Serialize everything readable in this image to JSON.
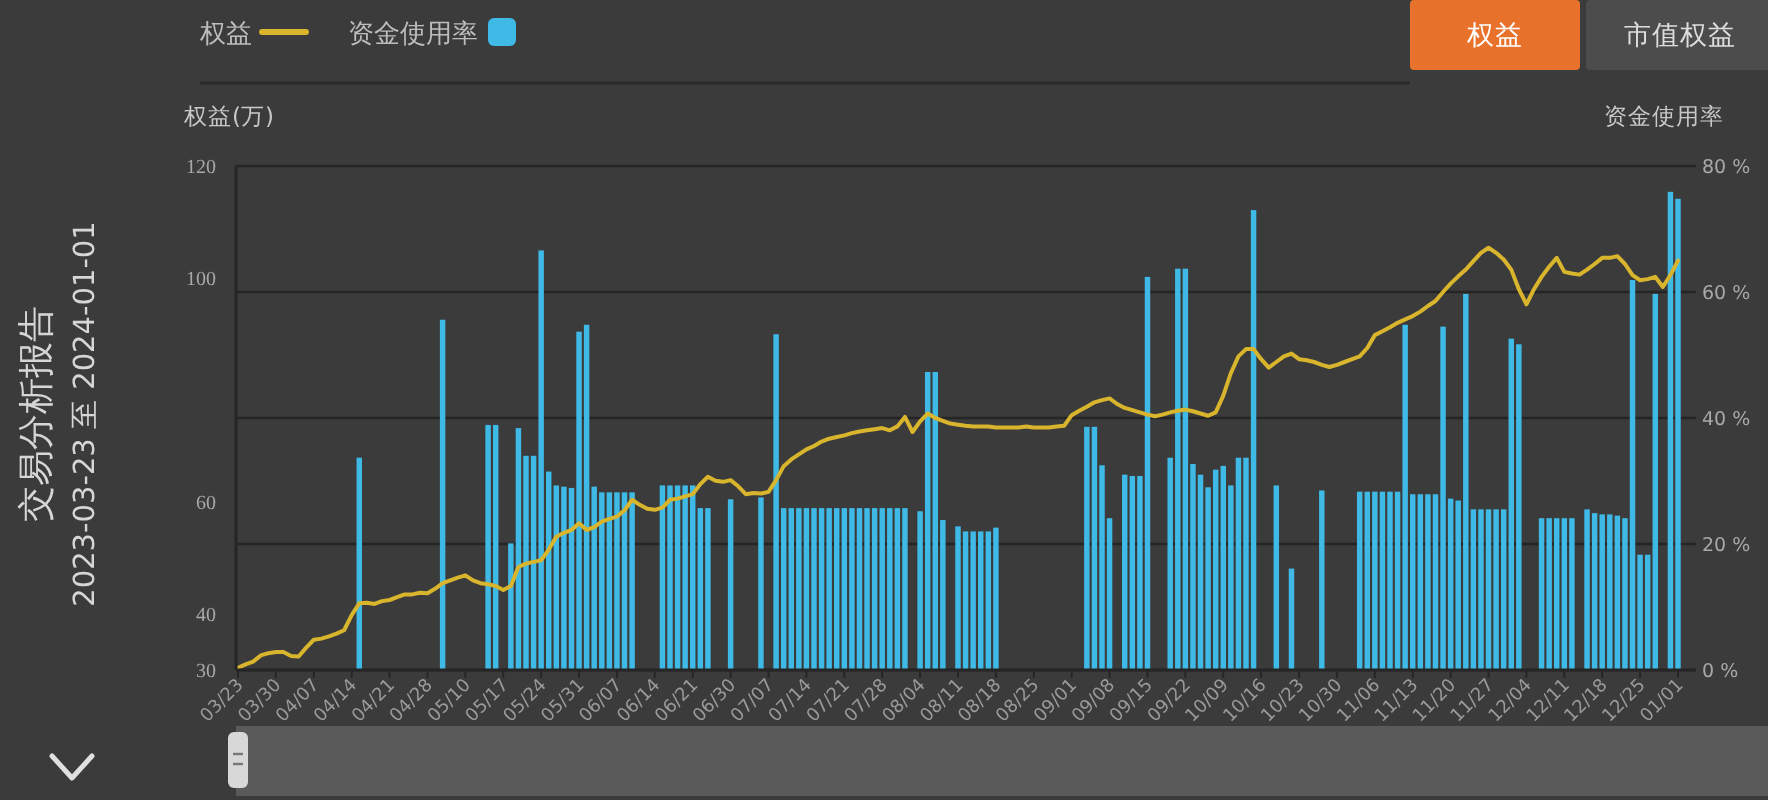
{
  "chart_data": {
    "type": "bar",
    "title": "交易分析报告",
    "subtitle": "2023-03-23 至 2024-01-01",
    "ylabel": "权益(万)",
    "y2label": "资金使用率",
    "categories": [
      "03/23",
      null,
      null,
      null,
      null,
      "03/30",
      null,
      null,
      null,
      null,
      "04/07",
      null,
      null,
      null,
      null,
      "04/14",
      null,
      null,
      null,
      null,
      "04/21",
      null,
      null,
      null,
      null,
      "04/28",
      null,
      null,
      null,
      null,
      "05/10",
      null,
      null,
      null,
      null,
      "05/17",
      null,
      null,
      null,
      null,
      "05/24",
      null,
      null,
      null,
      null,
      "05/31",
      null,
      null,
      null,
      null,
      "06/07",
      null,
      null,
      null,
      null,
      "06/14",
      null,
      null,
      null,
      null,
      "06/21",
      null,
      null,
      null,
      null,
      "06/30",
      null,
      null,
      null,
      null,
      "07/07",
      null,
      null,
      null,
      null,
      "07/14",
      null,
      null,
      null,
      null,
      "07/21",
      null,
      null,
      null,
      null,
      "07/28",
      null,
      null,
      null,
      null,
      "08/04",
      null,
      null,
      null,
      null,
      "08/11",
      null,
      null,
      null,
      null,
      "08/18",
      null,
      null,
      null,
      null,
      "08/25",
      null,
      null,
      null,
      null,
      "09/01",
      null,
      null,
      null,
      null,
      "09/08",
      null,
      null,
      null,
      null,
      "09/15",
      null,
      null,
      null,
      null,
      "09/22",
      null,
      null,
      null,
      null,
      "10/09",
      null,
      null,
      null,
      null,
      "10/16",
      null,
      null,
      null,
      null,
      "10/23",
      null,
      null,
      null,
      null,
      "10/30",
      null,
      null,
      null,
      null,
      "11/06",
      null,
      null,
      null,
      null,
      "11/13",
      null,
      null,
      null,
      null,
      "11/20",
      null,
      null,
      null,
      null,
      "11/27",
      null,
      null,
      null,
      null,
      "12/04",
      null,
      null,
      null,
      null,
      "12/11",
      null,
      null,
      null,
      null,
      "12/18",
      null,
      null,
      null,
      null,
      "12/25",
      null,
      null,
      null,
      null,
      "01/01"
    ],
    "series": [
      {
        "name": "权益",
        "type": "line",
        "color": "#d8b52c",
        "values": [
          30.4,
          31,
          31.5,
          32.6,
          33,
          33.2,
          33.2,
          32.5,
          32.4,
          34,
          35.4,
          35.6,
          36,
          36.5,
          37.1,
          39.8,
          41.9,
          42,
          41.8,
          42.3,
          42.5,
          43,
          43.5,
          43.5,
          43.8,
          43.7,
          44.5,
          45.5,
          46,
          46.5,
          46.9,
          46,
          45.5,
          45.3,
          45,
          44.3,
          45,
          48.4,
          49,
          49.3,
          49.6,
          51.5,
          53.8,
          54.5,
          55,
          56.2,
          55,
          55.5,
          56.5,
          57,
          57.4,
          58.5,
          60.4,
          59.5,
          58.8,
          58.6,
          59,
          60.4,
          60.6,
          61,
          61.4,
          63.2,
          64.5,
          63.8,
          63.6,
          63.9,
          62.8,
          61.4,
          61.6,
          61.5,
          61.8,
          63.9,
          66.4,
          67.6,
          68.5,
          69.4,
          70,
          70.8,
          71.3,
          71.6,
          71.9,
          72.3,
          72.6,
          72.8,
          73,
          73.2,
          72.8,
          73.5,
          75.2,
          72.5,
          74.4,
          75.8,
          75,
          74.5,
          74,
          73.8,
          73.6,
          73.5,
          73.5,
          73.5,
          73.3,
          73.3,
          73.3,
          73.3,
          73.5,
          73.3,
          73.3,
          73.3,
          73.5,
          73.6,
          75.5,
          76.3,
          77,
          77.8,
          78.2,
          78.5,
          77.5,
          76.8,
          76.4,
          76,
          75.6,
          75.3,
          75.6,
          76,
          76.3,
          76.5,
          76.2,
          75.8,
          75.4,
          76,
          79,
          83,
          86,
          87.3,
          87.3,
          85.5,
          84,
          85,
          86,
          86.5,
          85.5,
          85.3,
          85,
          84.5,
          84.1,
          84.5,
          85,
          85.5,
          86,
          87.5,
          89.8,
          90.5,
          91.2,
          92,
          92.6,
          93.2,
          94,
          95,
          95.9,
          97.5,
          99,
          100.3,
          101.5,
          103,
          104.5,
          105.4,
          104.5,
          103.3,
          101.5,
          98,
          95.3,
          98,
          100.2,
          102,
          103.6,
          101.1,
          100.8,
          100.6,
          101.5,
          102.5,
          103.6,
          103.6,
          103.9,
          102.5,
          100.5,
          99.6,
          99.8,
          100.2,
          98.4,
          100.5,
          103.1
        ]
      },
      {
        "name": "资金使用率",
        "axis": "y2",
        "color": "#3fb9e6",
        "values": [
          null,
          null,
          null,
          null,
          null,
          null,
          null,
          null,
          null,
          null,
          null,
          null,
          null,
          null,
          null,
          null,
          33.7,
          null,
          null,
          null,
          null,
          null,
          null,
          null,
          null,
          null,
          null,
          55.6,
          null,
          null,
          null,
          null,
          null,
          38.9,
          38.9,
          null,
          20.1,
          38.4,
          34.0,
          34.0,
          66.6,
          31.5,
          29.3,
          29.1,
          28.9,
          53.7,
          54.8,
          29.1,
          28.2,
          28.2,
          28.2,
          28.2,
          28.2,
          null,
          null,
          null,
          29.3,
          29.3,
          29.3,
          29.3,
          29.3,
          25.7,
          25.7,
          null,
          null,
          27.1,
          null,
          null,
          null,
          27.4,
          null,
          53.3,
          25.7,
          25.7,
          25.7,
          25.7,
          25.7,
          25.7,
          25.7,
          25.7,
          25.7,
          25.7,
          25.7,
          25.7,
          25.7,
          25.7,
          25.7,
          25.7,
          25.7,
          null,
          25.2,
          47.3,
          47.3,
          23.8,
          null,
          22.8,
          22,
          22,
          22,
          22,
          22.6,
          null,
          null,
          null,
          null,
          null,
          null,
          null,
          null,
          null,
          null,
          null,
          38.6,
          38.6,
          32.5,
          24.1,
          null,
          31.0,
          30.8,
          30.8,
          62.4,
          null,
          null,
          33.7,
          63.7,
          63.7,
          32.7,
          31.0,
          29.0,
          31.8,
          32.4,
          29.3,
          33.7,
          33.7,
          73.0,
          null,
          null,
          29.3,
          null,
          16.1,
          null,
          null,
          null,
          28.5,
          null,
          null,
          null,
          null,
          28.3,
          28.3,
          28.3,
          28.3,
          28.3,
          28.3,
          54.8,
          27.9,
          27.9,
          27.9,
          27.9,
          54.5,
          27.2,
          26.9,
          59.7,
          25.5,
          25.5,
          25.5,
          25.5,
          25.5,
          52.6,
          51.7,
          null,
          null,
          24.1,
          24.1,
          24.1,
          24.1,
          24.1,
          null,
          25.5,
          24.9,
          24.7,
          24.7,
          24.5,
          24.1,
          61.9,
          18.3,
          18.3,
          59.7,
          null,
          75.9,
          74.8
        ]
      }
    ],
    "ylim": [
      30,
      120
    ],
    "yticks": [
      30,
      40,
      60,
      100,
      120
    ],
    "y2lim": [
      0,
      80
    ],
    "y2ticks": [
      {
        "value": 0,
        "label": "0 %"
      },
      {
        "value": 20,
        "label": "20 %"
      },
      {
        "value": 40,
        "label": "40 %"
      },
      {
        "value": 60,
        "label": "60 %"
      },
      {
        "value": 80,
        "label": "80 %"
      }
    ],
    "grid": "y",
    "legend": "top left",
    "annotations": [
      "权益",
      "市值权益"
    ]
  }
}
